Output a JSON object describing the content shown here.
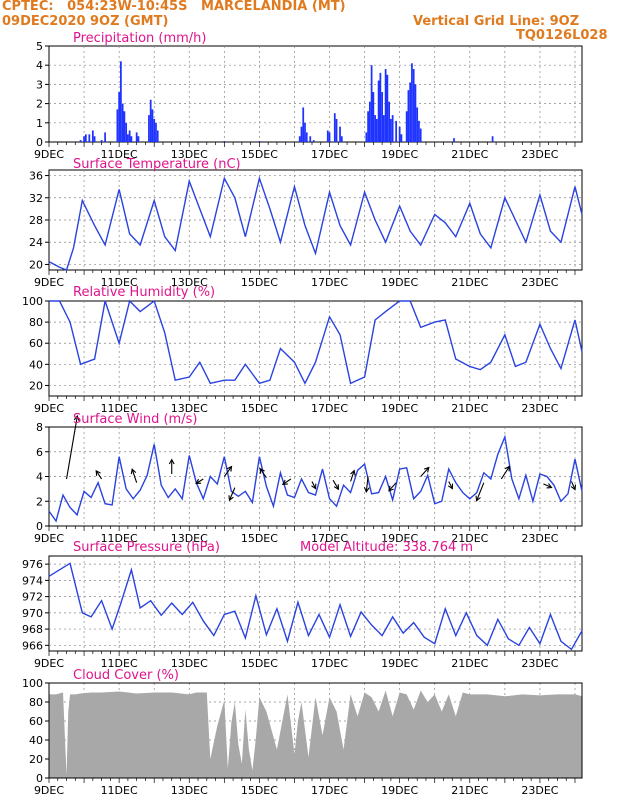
{
  "header": {
    "line1": "CPTEC:   054:23W-10:45S   MARCELANDIA (MT)",
    "line2": "09DEC2020 9OZ (GMT)",
    "grid_note": "Vertical Grid Line: 9OZ",
    "code": "TQ0126L028",
    "altitude_note": "Model Altitude: 338.764 m"
  },
  "colors": {
    "header": "#e07a1f",
    "title": "#e0148c",
    "line": "#2a43e0",
    "bar": "#1f33ff",
    "cloud": "#a8a8a8",
    "grid": "#888888"
  },
  "chart_data": [
    {
      "type": "bar",
      "title": "Precipitation (mm/h)",
      "ylim": [
        0,
        5
      ],
      "yticks": [
        "0",
        "1",
        "2",
        "3",
        "4",
        "5"
      ],
      "xticks": [
        "9DEC",
        "11DEC",
        "13DEC",
        "15DEC",
        "17DEC",
        "19DEC",
        "21DEC",
        "23DEC"
      ],
      "x_days": [
        0,
        15.2
      ],
      "bars": [
        [
          0.9,
          0.1
        ],
        [
          1.0,
          0.3
        ],
        [
          1.05,
          0.4
        ],
        [
          1.15,
          0.4
        ],
        [
          1.25,
          0.6
        ],
        [
          1.3,
          0.3
        ],
        [
          1.5,
          0.1
        ],
        [
          1.6,
          0.5
        ],
        [
          1.95,
          1.7
        ],
        [
          2.0,
          2.6
        ],
        [
          2.05,
          4.2
        ],
        [
          2.1,
          2.0
        ],
        [
          2.15,
          1.6
        ],
        [
          2.2,
          1.0
        ],
        [
          2.25,
          0.4
        ],
        [
          2.3,
          0.6
        ],
        [
          2.35,
          0.3
        ],
        [
          2.5,
          0.5
        ],
        [
          2.55,
          0.3
        ],
        [
          2.85,
          1.4
        ],
        [
          2.9,
          2.2
        ],
        [
          2.95,
          1.7
        ],
        [
          3.0,
          1.2
        ],
        [
          3.05,
          1.0
        ],
        [
          3.1,
          0.6
        ],
        [
          5.0,
          0.05
        ],
        [
          6.0,
          0.05
        ],
        [
          7.15,
          0.3
        ],
        [
          7.2,
          0.8
        ],
        [
          7.25,
          1.8
        ],
        [
          7.3,
          1.0
        ],
        [
          7.35,
          0.5
        ],
        [
          7.45,
          0.3
        ],
        [
          7.55,
          0.1
        ],
        [
          7.95,
          0.6
        ],
        [
          8.0,
          0.5
        ],
        [
          8.15,
          1.5
        ],
        [
          8.2,
          1.2
        ],
        [
          8.3,
          0.8
        ],
        [
          8.35,
          0.3
        ],
        [
          9.05,
          0.5
        ],
        [
          9.1,
          1.6
        ],
        [
          9.15,
          2.1
        ],
        [
          9.2,
          4.0
        ],
        [
          9.25,
          2.6
        ],
        [
          9.3,
          1.4
        ],
        [
          9.35,
          1.2
        ],
        [
          9.4,
          3.2
        ],
        [
          9.45,
          3.6
        ],
        [
          9.5,
          2.6
        ],
        [
          9.55,
          1.4
        ],
        [
          9.6,
          3.8
        ],
        [
          9.65,
          3.5
        ],
        [
          9.7,
          2.1
        ],
        [
          9.75,
          1.2
        ],
        [
          9.8,
          1.4
        ],
        [
          9.9,
          1.1
        ],
        [
          10.0,
          0.8
        ],
        [
          10.05,
          0.4
        ],
        [
          10.2,
          1.6
        ],
        [
          10.25,
          2.7
        ],
        [
          10.3,
          3.1
        ],
        [
          10.35,
          4.1
        ],
        [
          10.4,
          3.8
        ],
        [
          10.45,
          3.0
        ],
        [
          10.5,
          1.8
        ],
        [
          10.55,
          1.1
        ],
        [
          10.6,
          0.7
        ],
        [
          11.55,
          0.2
        ],
        [
          12.65,
          0.3
        ]
      ]
    },
    {
      "type": "line",
      "title": "Surface Temperature (nC)",
      "ylim": [
        19,
        37
      ],
      "yticks": [
        "20",
        "24",
        "28",
        "32",
        "36"
      ],
      "xticks": [
        "9DEC",
        "11DEC",
        "13DEC",
        "15DEC",
        "17DEC",
        "19DEC",
        "21DEC",
        "23DEC"
      ],
      "x": [
        0,
        0.3,
        0.5,
        0.7,
        0.95,
        1.3,
        1.6,
        2.0,
        2.3,
        2.6,
        3.0,
        3.3,
        3.6,
        4.0,
        4.3,
        4.6,
        5.0,
        5.3,
        5.6,
        6.0,
        6.3,
        6.6,
        7.0,
        7.3,
        7.6,
        8.0,
        8.3,
        8.6,
        9.0,
        9.3,
        9.6,
        10.0,
        10.3,
        10.6,
        11.0,
        11.3,
        11.6,
        12.0,
        12.3,
        12.6,
        13.0,
        13.3,
        13.6,
        14.0,
        14.3,
        14.6,
        15.0,
        15.2
      ],
      "y": [
        20.5,
        19.5,
        19.0,
        23,
        31.5,
        27,
        23.5,
        33.5,
        25.5,
        23.5,
        31.5,
        25,
        22.5,
        35,
        30,
        25,
        35.5,
        32,
        25,
        35.5,
        30,
        24,
        34,
        27,
        22,
        33,
        27,
        23.5,
        33,
        28,
        24,
        30.5,
        26,
        23.5,
        29,
        27.5,
        25,
        31,
        25.5,
        23,
        32,
        28,
        24,
        32.5,
        26,
        24,
        34,
        29
      ]
    },
    {
      "type": "line",
      "title": "Relative Humidity (%)",
      "ylim": [
        10,
        100
      ],
      "yticks": [
        "20",
        "40",
        "60",
        "80",
        "100"
      ],
      "xticks": [
        "9DEC",
        "11DEC",
        "13DEC",
        "15DEC",
        "17DEC",
        "19DEC",
        "21DEC",
        "23DEC"
      ],
      "x": [
        0,
        0.3,
        0.6,
        0.9,
        1.3,
        1.6,
        2.0,
        2.3,
        2.6,
        3.0,
        3.3,
        3.6,
        4.0,
        4.3,
        4.6,
        5.0,
        5.3,
        5.6,
        6.0,
        6.3,
        6.6,
        7.0,
        7.3,
        7.6,
        8.0,
        8.3,
        8.6,
        9.0,
        9.3,
        9.6,
        10.0,
        10.3,
        10.6,
        11.0,
        11.3,
        11.6,
        12.0,
        12.3,
        12.6,
        13.0,
        13.3,
        13.6,
        14.0,
        14.3,
        14.6,
        15.0,
        15.2
      ],
      "y": [
        100,
        100,
        80,
        40,
        45,
        100,
        60,
        100,
        90,
        100,
        70,
        25,
        28,
        42,
        22,
        25,
        25,
        40,
        22,
        25,
        55,
        42,
        22,
        42,
        85,
        68,
        22,
        28,
        82,
        90,
        100,
        100,
        75,
        80,
        82,
        45,
        38,
        35,
        42,
        68,
        38,
        42,
        78,
        55,
        36,
        82,
        52
      ]
    },
    {
      "type": "line",
      "title": "Surface Wind (m/s)",
      "ylim": [
        0,
        8
      ],
      "yticks": [
        "0",
        "2",
        "4",
        "6",
        "8"
      ],
      "xticks": [
        "9DEC",
        "11DEC",
        "13DEC",
        "15DEC",
        "17DEC",
        "19DEC",
        "21DEC",
        "23DEC"
      ],
      "x": [
        0,
        0.2,
        0.4,
        0.6,
        0.8,
        1.0,
        1.2,
        1.4,
        1.6,
        1.8,
        2.0,
        2.2,
        2.4,
        2.6,
        2.8,
        3.0,
        3.2,
        3.4,
        3.6,
        3.8,
        4.0,
        4.2,
        4.4,
        4.6,
        4.8,
        5.0,
        5.2,
        5.4,
        5.6,
        5.8,
        6.0,
        6.2,
        6.4,
        6.6,
        6.8,
        7.0,
        7.2,
        7.4,
        7.6,
        7.8,
        8.0,
        8.2,
        8.4,
        8.6,
        8.8,
        9.0,
        9.2,
        9.4,
        9.6,
        9.8,
        10.0,
        10.2,
        10.4,
        10.6,
        10.8,
        11.0,
        11.2,
        11.4,
        11.6,
        11.8,
        12.0,
        12.2,
        12.4,
        12.6,
        12.8,
        13.0,
        13.2,
        13.4,
        13.6,
        13.8,
        14.0,
        14.2,
        14.4,
        14.6,
        14.8,
        15.0,
        15.2
      ],
      "y": [
        1.2,
        0.4,
        2.5,
        1.5,
        0.9,
        2.8,
        2.3,
        3.5,
        1.8,
        1.7,
        5.6,
        3.0,
        2.2,
        2.9,
        4.1,
        6.6,
        3.3,
        2.3,
        3.0,
        2.2,
        5.7,
        3.5,
        2.2,
        4.0,
        3.4,
        5.6,
        2.8,
        2.4,
        2.8,
        1.9,
        5.6,
        3.2,
        1.6,
        4.3,
        2.5,
        2.3,
        3.8,
        2.7,
        2.5,
        4.6,
        2.2,
        1.6,
        3.3,
        2.7,
        4.5,
        5.0,
        2.6,
        2.7,
        4.0,
        2.1,
        4.6,
        4.7,
        2.2,
        2.8,
        4.1,
        1.8,
        2.0,
        4.6,
        3.5,
        2.7,
        2.2,
        2.7,
        4.3,
        3.8,
        5.8,
        7.2,
        3.8,
        2.2,
        4.1,
        2.0,
        4.2,
        4.0,
        3.3,
        2.0,
        2.6,
        5.4,
        2.8
      ],
      "arrows": [
        [
          0.5,
          3.8,
          1.2,
          7
        ],
        [
          1.5,
          3.8,
          -0.6,
          0.9
        ],
        [
          2.5,
          3.5,
          -0.5,
          1.5
        ],
        [
          3.5,
          4.2,
          0.0,
          1.6
        ],
        [
          4.4,
          3.8,
          -0.8,
          -0.5
        ],
        [
          5.0,
          4.0,
          0.8,
          1.1
        ],
        [
          5.3,
          3.1,
          -0.6,
          -1.4
        ],
        [
          6.2,
          3.9,
          -0.7,
          1.0
        ],
        [
          6.9,
          3.8,
          -0.9,
          -0.6
        ],
        [
          7.5,
          3.6,
          0.4,
          -0.8
        ],
        [
          8.1,
          3.7,
          0.6,
          -1.0
        ],
        [
          8.6,
          3.6,
          0.4,
          1.2
        ],
        [
          9.1,
          4.0,
          -0.2,
          -1.7
        ],
        [
          9.9,
          3.5,
          -0.8,
          -0.9
        ],
        [
          10.6,
          4.0,
          0.9,
          1.0
        ],
        [
          11.4,
          3.6,
          0.4,
          -0.8
        ],
        [
          12.4,
          3.5,
          -0.8,
          -2.0
        ],
        [
          12.9,
          3.8,
          0.9,
          1.4
        ],
        [
          14.1,
          3.4,
          0.9,
          -0.4
        ],
        [
          14.9,
          3.6,
          0.4,
          -0.9
        ]
      ]
    },
    {
      "type": "line",
      "title": "Surface Pressure (hPa)",
      "ylim": [
        965.3,
        977
      ],
      "yticks": [
        "966",
        "968",
        "970",
        "972",
        "974",
        "976"
      ],
      "xticks": [
        "9DEC",
        "11DEC",
        "13DEC",
        "15DEC",
        "17DEC",
        "19DEC",
        "21DEC",
        "23DEC"
      ],
      "x": [
        0,
        0.3,
        0.6,
        0.95,
        1.2,
        1.5,
        1.8,
        2.05,
        2.35,
        2.6,
        2.9,
        3.2,
        3.5,
        3.8,
        4.1,
        4.4,
        4.7,
        5.0,
        5.3,
        5.6,
        5.9,
        6.2,
        6.5,
        6.8,
        7.1,
        7.4,
        7.7,
        8.0,
        8.3,
        8.6,
        8.9,
        9.2,
        9.5,
        9.8,
        10.1,
        10.4,
        10.7,
        11.0,
        11.3,
        11.6,
        11.9,
        12.2,
        12.5,
        12.8,
        13.1,
        13.4,
        13.7,
        14.0,
        14.3,
        14.6,
        14.9,
        15.2
      ],
      "y": [
        974.5,
        975.3,
        976.1,
        970.0,
        969.5,
        971.5,
        968.0,
        971.2,
        975.3,
        970.6,
        971.5,
        969.7,
        971.2,
        969.8,
        971.3,
        969.0,
        967.2,
        969.8,
        970.2,
        966.9,
        972.1,
        967.3,
        970.5,
        966.5,
        971.3,
        967.2,
        969.8,
        967.0,
        971.0,
        967.1,
        970.1,
        968.5,
        967.2,
        969.5,
        967.5,
        968.8,
        967.0,
        966.2,
        970.5,
        967.2,
        970.0,
        967.2,
        966.0,
        969.2,
        966.8,
        966.0,
        968.2,
        966.2,
        969.8,
        966.5,
        965.5,
        967.8
      ]
    },
    {
      "type": "area",
      "title": "Cloud Cover (%)",
      "ylim": [
        0,
        100
      ],
      "yticks": [
        "0",
        "20",
        "40",
        "60",
        "80",
        "100"
      ],
      "xticks": [
        "9DEC",
        "11DEC",
        "13DEC",
        "15DEC",
        "17DEC",
        "19DEC",
        "21DEC",
        "23DEC"
      ],
      "x": [
        0,
        0.2,
        0.4,
        0.5,
        0.55,
        0.6,
        0.75,
        0.9,
        1.2,
        1.5,
        2.0,
        2.5,
        3.0,
        3.5,
        4.0,
        4.2,
        4.5,
        4.6,
        4.8,
        5.0,
        5.1,
        5.2,
        5.3,
        5.4,
        5.5,
        5.6,
        5.7,
        5.8,
        5.9,
        6.0,
        6.2,
        6.5,
        6.8,
        7.0,
        7.1,
        7.2,
        7.4,
        7.6,
        7.8,
        8.0,
        8.2,
        8.4,
        8.6,
        8.8,
        9.0,
        9.2,
        9.4,
        9.6,
        9.8,
        10.0,
        10.2,
        10.4,
        10.6,
        10.8,
        11.0,
        11.2,
        11.4,
        11.6,
        11.8,
        12.0,
        12.5,
        13.0,
        13.5,
        14.0,
        14.5,
        15.0,
        15.2
      ],
      "y": [
        88,
        88,
        90,
        3,
        70,
        88,
        88,
        89,
        90,
        90,
        91,
        89,
        90,
        90,
        88,
        90,
        90,
        20,
        55,
        82,
        10,
        58,
        80,
        35,
        15,
        72,
        30,
        8,
        42,
        85,
        70,
        30,
        88,
        25,
        60,
        80,
        22,
        85,
        45,
        85,
        70,
        30,
        88,
        65,
        90,
        85,
        70,
        92,
        65,
        90,
        88,
        72,
        92,
        80,
        88,
        70,
        88,
        65,
        90,
        88,
        88,
        86,
        88,
        87,
        88,
        88,
        86
      ]
    }
  ]
}
